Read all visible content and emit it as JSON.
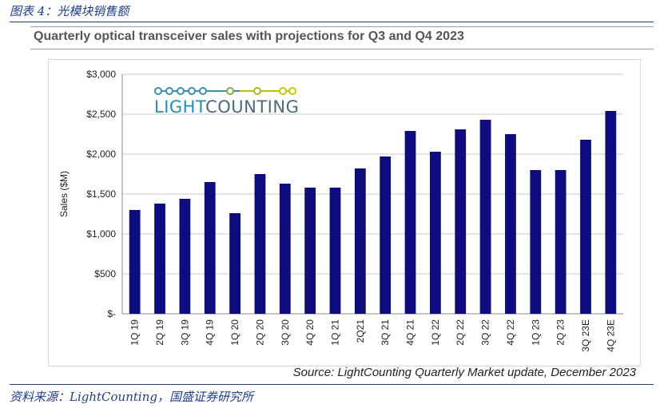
{
  "figure_caption": "图表 4：光模块销售额",
  "chart_data": {
    "type": "bar",
    "title": "Quarterly optical transceiver sales with projections for Q3 and Q4 2023",
    "ylabel": "Sales ($M)",
    "xlabel": "",
    "categories": [
      "1Q 19",
      "2Q 19",
      "3Q 19",
      "4Q 19",
      "1Q 20",
      "2Q 20",
      "3Q 20",
      "4Q 20",
      "1Q 21",
      "2Q21",
      "3Q 21",
      "4Q 21",
      "1Q 22",
      "2Q 22",
      "3Q 22",
      "4Q 22",
      "1Q 23",
      "2Q 23",
      "3Q 23E",
      "4Q 23E"
    ],
    "values": [
      1300,
      1380,
      1440,
      1650,
      1260,
      1750,
      1630,
      1580,
      1580,
      1820,
      1970,
      2290,
      2030,
      2310,
      2430,
      2250,
      1800,
      1800,
      2180,
      2540
    ],
    "ylim": [
      0,
      3000
    ],
    "y_ticks": [
      0,
      500,
      1000,
      1500,
      2000,
      2500,
      3000
    ],
    "y_tick_labels": [
      "$-",
      "$500",
      "$1,000",
      "$1,500",
      "$2,000",
      "$2,500",
      "$3,000"
    ],
    "bar_color": "#0d0d80",
    "grid": true,
    "legend": "none"
  },
  "logo": {
    "part1": "LIGHT",
    "part2": "COUNTING"
  },
  "source_note": "Source: LightCounting Quarterly Market update, December 2023",
  "data_source": "资料来源：LightCounting，国盛证券研究所"
}
